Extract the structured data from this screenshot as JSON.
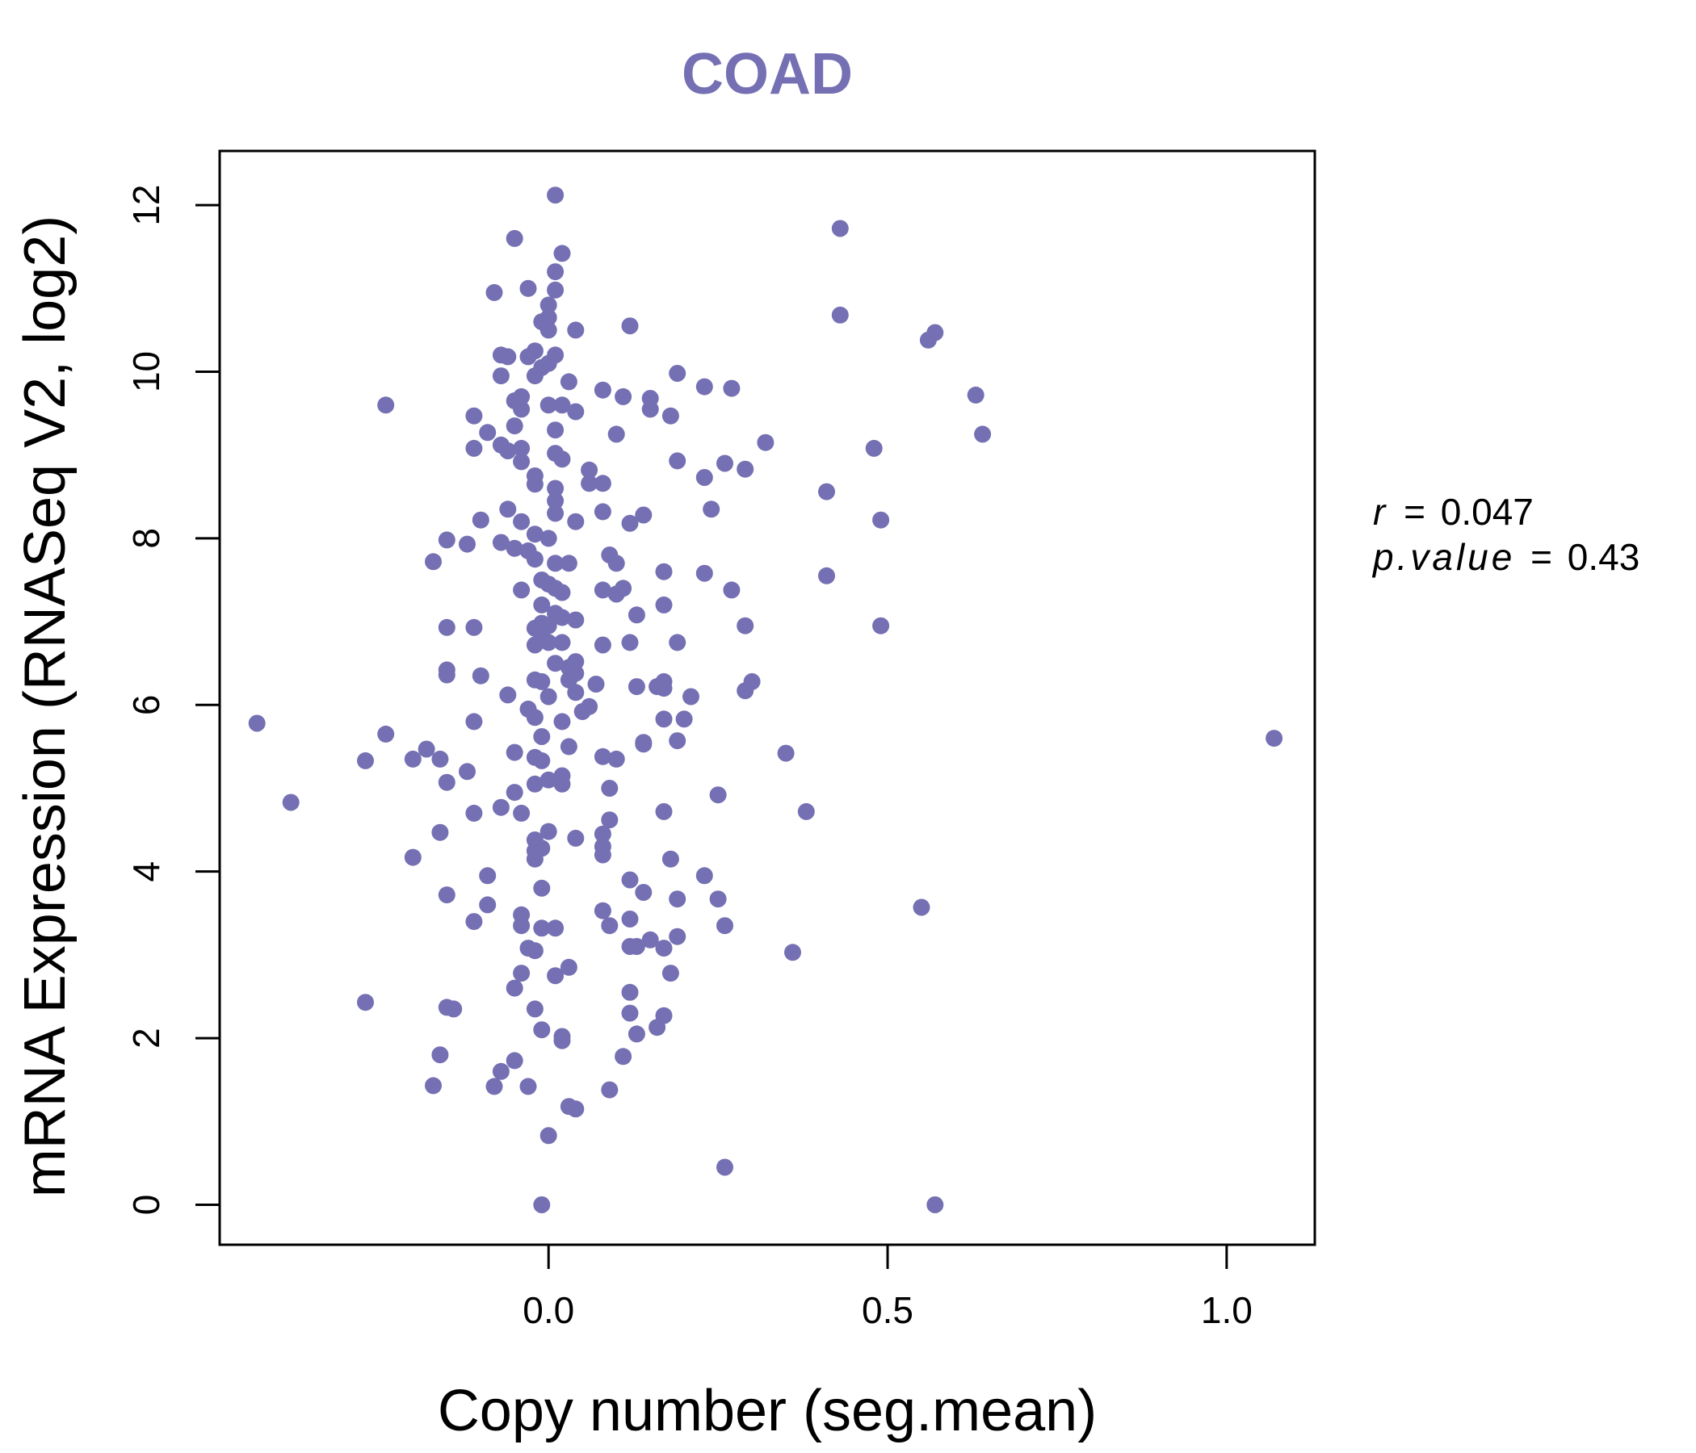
{
  "colors": {
    "points": "#7570b3",
    "title": "#7570b3",
    "axis": "#000000",
    "background": "#ffffff"
  },
  "chart_data": {
    "type": "scatter",
    "title": "COAD",
    "xlabel": "Copy number (seg.mean)",
    "ylabel": "mRNA Expression (RNASeq V2, log2)",
    "xlim": [
      -0.485,
      1.13
    ],
    "ylim": [
      -0.48,
      12.65
    ],
    "x_ticks": [
      0.0,
      0.5,
      1.0
    ],
    "x_tick_labels": [
      "0.0",
      "0.5",
      "1.0"
    ],
    "y_ticks": [
      0,
      2,
      4,
      6,
      8,
      10,
      12
    ],
    "y_tick_labels": [
      "0",
      "2",
      "4",
      "6",
      "8",
      "10",
      "12"
    ],
    "stats": {
      "r_label": "r",
      "r_value": "0.047",
      "p_label": "p.value",
      "p_value": "0.43"
    },
    "points": [
      [
        0.01,
        12.12
      ],
      [
        -0.05,
        11.6
      ],
      [
        0.43,
        11.72
      ],
      [
        0.02,
        11.42
      ],
      [
        0.01,
        11.2
      ],
      [
        0.01,
        10.98
      ],
      [
        0.0,
        10.8
      ],
      [
        0.0,
        10.65
      ],
      [
        -0.03,
        11.0
      ],
      [
        -0.08,
        10.95
      ],
      [
        0.43,
        10.68
      ],
      [
        0.57,
        10.47
      ],
      [
        0.56,
        10.38
      ],
      [
        0.04,
        10.5
      ],
      [
        0.12,
        10.55
      ],
      [
        0.0,
        10.5
      ],
      [
        -0.01,
        10.6
      ],
      [
        -0.07,
        10.2
      ],
      [
        -0.06,
        10.18
      ],
      [
        -0.03,
        10.18
      ],
      [
        -0.02,
        10.25
      ],
      [
        0.0,
        10.1
      ],
      [
        0.01,
        10.2
      ],
      [
        -0.01,
        10.05
      ],
      [
        -0.02,
        9.95
      ],
      [
        -0.07,
        9.95
      ],
      [
        0.03,
        9.88
      ],
      [
        0.08,
        9.78
      ],
      [
        0.11,
        9.7
      ],
      [
        0.15,
        9.68
      ],
      [
        0.19,
        9.98
      ],
      [
        0.23,
        9.82
      ],
      [
        0.27,
        9.8
      ],
      [
        0.63,
        9.72
      ],
      [
        0.64,
        9.25
      ],
      [
        -0.24,
        9.6
      ],
      [
        -0.04,
        9.7
      ],
      [
        -0.05,
        9.65
      ],
      [
        -0.04,
        9.55
      ],
      [
        0.0,
        9.6
      ],
      [
        0.02,
        9.6
      ],
      [
        0.04,
        9.52
      ],
      [
        0.15,
        9.55
      ],
      [
        0.18,
        9.47
      ],
      [
        -0.11,
        9.47
      ],
      [
        -0.05,
        9.35
      ],
      [
        -0.09,
        9.27
      ],
      [
        0.01,
        9.3
      ],
      [
        0.1,
        9.25
      ],
      [
        0.32,
        9.15
      ],
      [
        -0.07,
        9.12
      ],
      [
        -0.04,
        9.08
      ],
      [
        -0.11,
        9.08
      ],
      [
        -0.06,
        9.05
      ],
      [
        0.01,
        9.02
      ],
      [
        0.02,
        8.95
      ],
      [
        -0.04,
        8.92
      ],
      [
        0.19,
        8.93
      ],
      [
        0.26,
        8.9
      ],
      [
        0.29,
        8.83
      ],
      [
        0.23,
        8.73
      ],
      [
        0.48,
        9.08
      ],
      [
        0.41,
        8.56
      ],
      [
        -0.02,
        8.75
      ],
      [
        -0.02,
        8.65
      ],
      [
        0.06,
        8.82
      ],
      [
        0.06,
        8.66
      ],
      [
        0.08,
        8.66
      ],
      [
        0.01,
        8.6
      ],
      [
        0.01,
        8.45
      ],
      [
        0.01,
        8.3
      ],
      [
        0.24,
        8.35
      ],
      [
        -0.06,
        8.35
      ],
      [
        -0.04,
        8.2
      ],
      [
        0.04,
        8.2
      ],
      [
        0.08,
        8.32
      ],
      [
        0.12,
        8.18
      ],
      [
        0.14,
        8.28
      ],
      [
        -0.1,
        8.22
      ],
      [
        0.49,
        8.22
      ],
      [
        -0.02,
        8.05
      ],
      [
        0.0,
        8.0
      ],
      [
        -0.15,
        7.98
      ],
      [
        -0.12,
        7.93
      ],
      [
        -0.07,
        7.95
      ],
      [
        -0.05,
        7.88
      ],
      [
        -0.03,
        7.85
      ],
      [
        -0.02,
        7.75
      ],
      [
        0.01,
        7.7
      ],
      [
        0.03,
        7.7
      ],
      [
        -0.17,
        7.72
      ],
      [
        0.09,
        7.8
      ],
      [
        0.1,
        7.7
      ],
      [
        0.17,
        7.6
      ],
      [
        0.23,
        7.58
      ],
      [
        0.41,
        7.55
      ],
      [
        -0.04,
        7.38
      ],
      [
        -0.01,
        7.5
      ],
      [
        0.0,
        7.45
      ],
      [
        0.01,
        7.4
      ],
      [
        0.02,
        7.35
      ],
      [
        0.08,
        7.38
      ],
      [
        0.11,
        7.4
      ],
      [
        0.1,
        7.33
      ],
      [
        0.17,
        7.2
      ],
      [
        0.27,
        7.38
      ],
      [
        -0.01,
        7.2
      ],
      [
        0.01,
        7.1
      ],
      [
        0.02,
        7.05
      ],
      [
        0.04,
        7.02
      ],
      [
        0.0,
        6.95
      ],
      [
        -0.01,
        6.98
      ],
      [
        -0.02,
        6.92
      ],
      [
        0.13,
        7.08
      ],
      [
        0.29,
        6.95
      ],
      [
        0.49,
        6.95
      ],
      [
        -0.15,
        6.93
      ],
      [
        -0.11,
        6.93
      ],
      [
        -0.01,
        6.8
      ],
      [
        0.0,
        6.75
      ],
      [
        0.02,
        6.75
      ],
      [
        0.08,
        6.72
      ],
      [
        0.12,
        6.75
      ],
      [
        0.19,
        6.75
      ],
      [
        -0.02,
        6.72
      ],
      [
        0.01,
        6.5
      ],
      [
        0.03,
        6.45
      ],
      [
        0.04,
        6.52
      ],
      [
        0.04,
        6.38
      ],
      [
        0.03,
        6.3
      ],
      [
        -0.15,
        6.42
      ],
      [
        -0.15,
        6.36
      ],
      [
        -0.1,
        6.35
      ],
      [
        -0.02,
        6.3
      ],
      [
        -0.01,
        6.28
      ],
      [
        0.0,
        6.1
      ],
      [
        0.04,
        6.15
      ],
      [
        0.07,
        6.25
      ],
      [
        0.13,
        6.22
      ],
      [
        0.16,
        6.22
      ],
      [
        0.17,
        6.28
      ],
      [
        0.17,
        6.2
      ],
      [
        0.21,
        6.1
      ],
      [
        0.29,
        6.17
      ],
      [
        0.3,
        6.28
      ],
      [
        -0.06,
        6.12
      ],
      [
        -0.03,
        5.95
      ],
      [
        -0.02,
        5.85
      ],
      [
        0.02,
        5.8
      ],
      [
        0.05,
        5.92
      ],
      [
        0.06,
        5.98
      ],
      [
        0.17,
        5.83
      ],
      [
        0.2,
        5.83
      ],
      [
        -0.11,
        5.8
      ],
      [
        -0.43,
        5.78
      ],
      [
        -0.24,
        5.65
      ],
      [
        -0.01,
        5.62
      ],
      [
        0.19,
        5.57
      ],
      [
        0.14,
        5.53
      ],
      [
        1.07,
        5.6
      ],
      [
        -0.18,
        5.47
      ],
      [
        -0.05,
        5.43
      ],
      [
        -0.02,
        5.37
      ],
      [
        0.03,
        5.5
      ],
      [
        0.08,
        5.38
      ],
      [
        0.1,
        5.35
      ],
      [
        0.14,
        5.55
      ],
      [
        0.35,
        5.42
      ],
      [
        -0.27,
        5.33
      ],
      [
        -0.2,
        5.35
      ],
      [
        -0.16,
        5.35
      ],
      [
        -0.01,
        5.33
      ],
      [
        -0.15,
        5.07
      ],
      [
        -0.12,
        5.2
      ],
      [
        -0.02,
        5.05
      ],
      [
        0.0,
        5.1
      ],
      [
        0.02,
        5.05
      ],
      [
        0.02,
        5.15
      ],
      [
        0.09,
        5.0
      ],
      [
        -0.05,
        4.95
      ],
      [
        0.25,
        4.92
      ],
      [
        -0.38,
        4.83
      ],
      [
        -0.07,
        4.77
      ],
      [
        -0.04,
        4.7
      ],
      [
        -0.11,
        4.7
      ],
      [
        0.09,
        4.62
      ],
      [
        0.17,
        4.72
      ],
      [
        0.38,
        4.72
      ],
      [
        -0.16,
        4.47
      ],
      [
        0.0,
        4.48
      ],
      [
        0.04,
        4.4
      ],
      [
        0.08,
        4.45
      ],
      [
        -0.02,
        4.38
      ],
      [
        -0.02,
        4.25
      ],
      [
        -0.01,
        4.28
      ],
      [
        -0.02,
        4.15
      ],
      [
        0.08,
        4.3
      ],
      [
        0.08,
        4.2
      ],
      [
        -0.2,
        4.17
      ],
      [
        0.18,
        4.15
      ],
      [
        -0.09,
        3.95
      ],
      [
        -0.01,
        3.8
      ],
      [
        0.12,
        3.9
      ],
      [
        0.14,
        3.75
      ],
      [
        0.23,
        3.95
      ],
      [
        -0.15,
        3.72
      ],
      [
        0.19,
        3.67
      ],
      [
        0.25,
        3.67
      ],
      [
        0.55,
        3.57
      ],
      [
        -0.09,
        3.6
      ],
      [
        -0.04,
        3.48
      ],
      [
        0.08,
        3.53
      ],
      [
        0.12,
        3.43
      ],
      [
        -0.11,
        3.4
      ],
      [
        -0.04,
        3.35
      ],
      [
        -0.01,
        3.32
      ],
      [
        0.01,
        3.32
      ],
      [
        0.09,
        3.35
      ],
      [
        0.26,
        3.35
      ],
      [
        -0.03,
        3.08
      ],
      [
        0.12,
        3.1
      ],
      [
        0.13,
        3.1
      ],
      [
        0.15,
        3.18
      ],
      [
        0.17,
        3.08
      ],
      [
        0.19,
        3.22
      ],
      [
        0.36,
        3.03
      ],
      [
        -0.02,
        3.05
      ],
      [
        0.03,
        2.85
      ],
      [
        0.01,
        2.75
      ],
      [
        0.18,
        2.78
      ],
      [
        -0.04,
        2.78
      ],
      [
        -0.05,
        2.6
      ],
      [
        0.12,
        2.55
      ],
      [
        -0.27,
        2.43
      ],
      [
        -0.15,
        2.37
      ],
      [
        -0.14,
        2.35
      ],
      [
        -0.02,
        2.35
      ],
      [
        0.12,
        2.3
      ],
      [
        0.17,
        2.27
      ],
      [
        0.16,
        2.13
      ],
      [
        -0.01,
        2.1
      ],
      [
        0.02,
        2.02
      ],
      [
        0.02,
        1.97
      ],
      [
        0.13,
        2.05
      ],
      [
        -0.16,
        1.8
      ],
      [
        0.11,
        1.78
      ],
      [
        -0.05,
        1.73
      ],
      [
        -0.07,
        1.6
      ],
      [
        -0.17,
        1.43
      ],
      [
        -0.08,
        1.42
      ],
      [
        -0.03,
        1.42
      ],
      [
        0.09,
        1.38
      ],
      [
        0.03,
        1.18
      ],
      [
        0.04,
        1.15
      ],
      [
        0.0,
        0.83
      ],
      [
        0.26,
        0.45
      ],
      [
        -0.01,
        0.0
      ],
      [
        0.57,
        0.0
      ]
    ]
  }
}
